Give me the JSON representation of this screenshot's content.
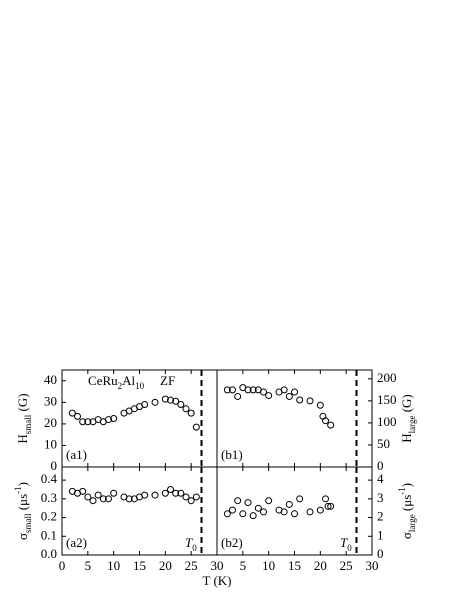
{
  "chart_data": [
    {
      "type": "scatter",
      "panel_label": "(a1)",
      "ylabel": [
        {
          "text": "H"
        },
        {
          "text": "small",
          "sub": true
        },
        {
          "text": " (G)"
        }
      ],
      "annotations": [
        [
          {
            "text": "CeRu"
          },
          {
            "text": "2",
            "sub": true
          },
          {
            "text": "Al"
          },
          {
            "text": "10",
            "sub": true
          }
        ],
        [
          {
            "text": "ZF"
          }
        ]
      ],
      "x": [
        2,
        3,
        4,
        5,
        6,
        7,
        8,
        9,
        10,
        12,
        13,
        14,
        15,
        16,
        18,
        20,
        21,
        22,
        23,
        24,
        25,
        26
      ],
      "values": [
        25,
        23.5,
        21,
        21,
        21,
        22,
        21,
        22,
        22.5,
        25,
        26,
        27,
        28,
        29,
        30,
        31.5,
        31,
        30.5,
        29,
        27,
        25,
        18.5
      ],
      "xlim": [
        0,
        30
      ],
      "ylim": [
        0,
        45
      ],
      "yticks": [
        0,
        10,
        20,
        30,
        40
      ],
      "y_side": "left",
      "vline": 27
    },
    {
      "type": "scatter",
      "panel_label": "(b1)",
      "ylabel": [
        {
          "text": "H"
        },
        {
          "text": "large",
          "sub": true
        },
        {
          "text": " (G)"
        }
      ],
      "x": [
        2,
        3,
        4,
        5,
        6,
        7,
        8,
        9,
        10,
        12,
        13,
        14,
        15,
        16,
        18,
        20,
        20.5,
        21,
        22
      ],
      "values": [
        175,
        175,
        160,
        180,
        175,
        175,
        175,
        170,
        162,
        170,
        175,
        160,
        170,
        152,
        150,
        140,
        115,
        105,
        95
      ],
      "xlim": [
        0,
        30
      ],
      "ylim": [
        0,
        220
      ],
      "yticks": [
        0,
        50,
        100,
        150,
        200
      ],
      "y_side": "right",
      "vline": 27
    },
    {
      "type": "scatter",
      "panel_label": "(a2)",
      "ylabel": [
        {
          "text": "σ"
        },
        {
          "text": "small",
          "sub": true
        },
        {
          "text": " (μs"
        },
        {
          "text": "-1",
          "sup": true
        },
        {
          "text": ")"
        }
      ],
      "t0_label": [
        {
          "text": "T",
          "italic": true
        },
        {
          "text": "0",
          "sub": true
        }
      ],
      "x": [
        2,
        3,
        4,
        5,
        6,
        7,
        8,
        9,
        10,
        12,
        13,
        14,
        15,
        16,
        18,
        20,
        21,
        22,
        23,
        24,
        25,
        26
      ],
      "values": [
        0.34,
        0.33,
        0.34,
        0.31,
        0.29,
        0.32,
        0.3,
        0.3,
        0.33,
        0.31,
        0.3,
        0.3,
        0.31,
        0.32,
        0.32,
        0.33,
        0.35,
        0.33,
        0.33,
        0.31,
        0.29,
        0.31
      ],
      "xlim": [
        0,
        30
      ],
      "xticks": [
        0,
        5,
        10,
        15,
        20,
        25,
        30
      ],
      "ylim": [
        0,
        0.47
      ],
      "yticks": [
        {
          "value": 0,
          "label": "0.0"
        },
        0.1,
        0.2,
        0.3,
        0.4
      ],
      "y_side": "left",
      "vline": 27
    },
    {
      "type": "scatter",
      "panel_label": "(b2)",
      "ylabel": [
        {
          "text": "σ"
        },
        {
          "text": "large",
          "sub": true
        },
        {
          "text": " (μs"
        },
        {
          "text": "-1",
          "sup": true
        },
        {
          "text": ")"
        }
      ],
      "t0_label": [
        {
          "text": "T",
          "italic": true
        },
        {
          "text": "0",
          "sub": true
        }
      ],
      "x": [
        2,
        3,
        4,
        5,
        6,
        7,
        8,
        9,
        10,
        12,
        13,
        14,
        15,
        16,
        18,
        20,
        21,
        21.5,
        22
      ],
      "values": [
        2.2,
        2.4,
        2.9,
        2.2,
        2.8,
        2.1,
        2.5,
        2.3,
        2.9,
        2.4,
        2.3,
        2.7,
        2.2,
        3.0,
        2.3,
        2.4,
        3.0,
        2.6,
        2.6
      ],
      "xlim": [
        0,
        30
      ],
      "xticks": [
        5,
        10,
        15,
        20,
        25,
        30
      ],
      "ylim": [
        0,
        4.7
      ],
      "yticks": [
        0,
        1,
        2,
        3,
        4
      ],
      "y_side": "right",
      "vline": 27
    }
  ],
  "xlabel": "T (K)"
}
